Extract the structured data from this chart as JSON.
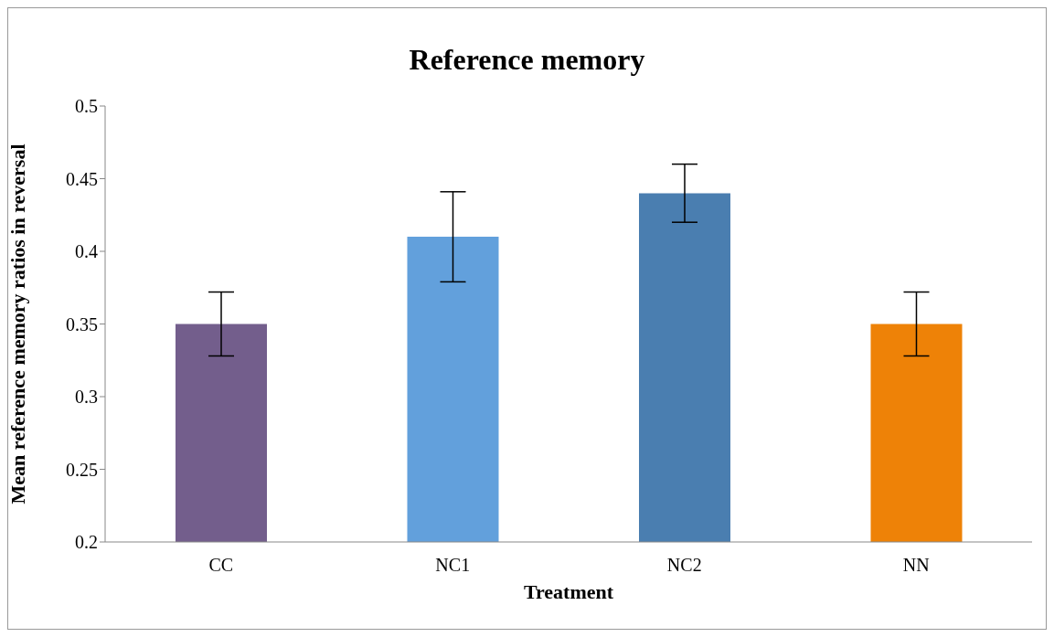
{
  "chart_data": {
    "type": "bar",
    "title": "Reference memory",
    "xlabel": "Treatment",
    "ylabel": "Mean reference memory ratios in reversal",
    "categories": [
      "CC",
      "NC1",
      "NC2",
      "NN"
    ],
    "values": [
      0.35,
      0.41,
      0.44,
      0.35
    ],
    "colors": [
      "#735e8c",
      "#62a0dc",
      "#4a7eb0",
      "#ee8207"
    ],
    "errors": [
      0.022,
      0.031,
      0.02,
      0.022
    ],
    "ylim": [
      0.2,
      0.5
    ],
    "yticks": [
      0.2,
      0.25,
      0.3,
      0.35,
      0.4,
      0.45,
      0.5
    ],
    "grid": false,
    "legend": false
  }
}
